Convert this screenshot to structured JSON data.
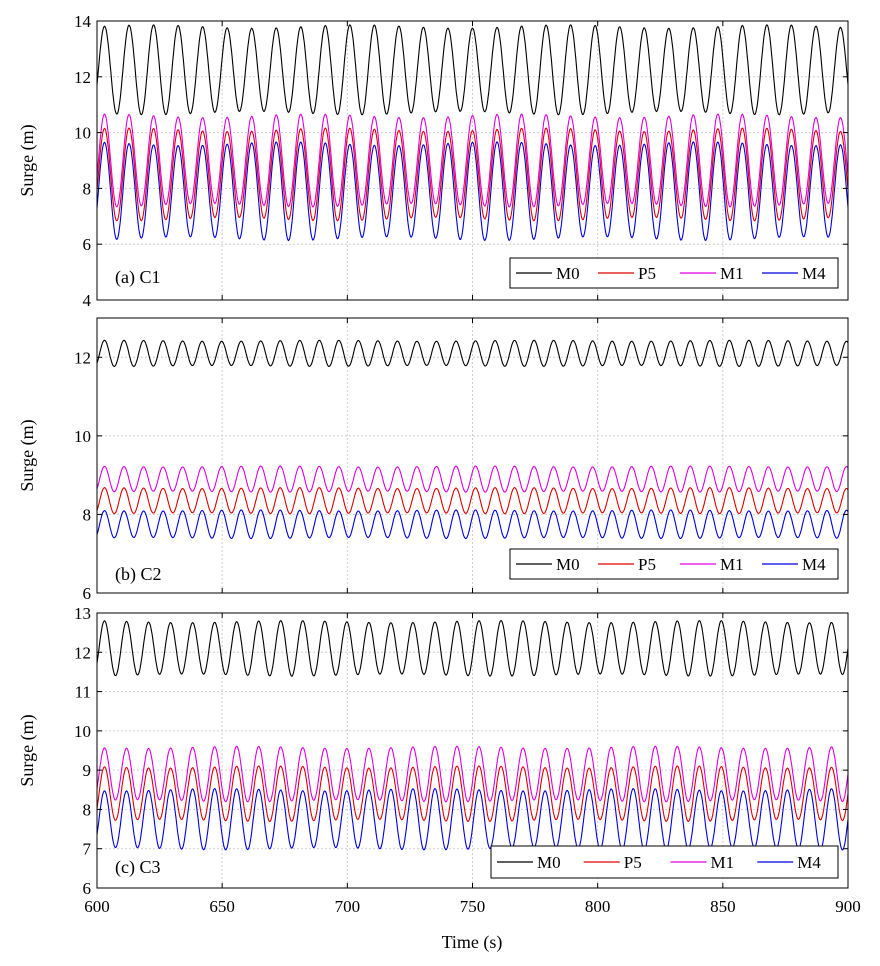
{
  "figure": {
    "xlabel": "Time (s)",
    "x_ticks": [
      "600",
      "650",
      "700",
      "750",
      "800",
      "850",
      "900"
    ]
  },
  "chart_data": [
    {
      "type": "line",
      "tag": "(a) C1",
      "ylabel": "Surge (m)",
      "xlim": [
        600,
        900
      ],
      "ylim": [
        4,
        14
      ],
      "y_ticks": [
        "4",
        "6",
        "8",
        "10",
        "12",
        "14"
      ],
      "x_ticks": [
        "600",
        "650",
        "700",
        "750",
        "800",
        "850",
        "900"
      ],
      "period_s": 9.8,
      "grid": true,
      "legend_position": "bottom-right",
      "series": [
        {
          "name": "M0",
          "color": "#000000",
          "mean": 12.25,
          "amplitude": 1.55
        },
        {
          "name": "P5",
          "color": "#e00000",
          "mean": 8.5,
          "amplitude": 1.6
        },
        {
          "name": "M1",
          "color": "#e000e0",
          "mean": 9.0,
          "amplitude": 1.6
        },
        {
          "name": "M4",
          "color": "#0000e0",
          "mean": 7.9,
          "amplitude": 1.7
        }
      ]
    },
    {
      "type": "line",
      "tag": "(b) C2",
      "ylabel": "Surge (m)",
      "xlim": [
        600,
        900
      ],
      "ylim": [
        6,
        13
      ],
      "y_ticks": [
        "6",
        "8",
        "10",
        "12"
      ],
      "x_ticks": [
        "600",
        "650",
        "700",
        "750",
        "800",
        "850",
        "900"
      ],
      "period_s": 7.8,
      "grid": true,
      "legend_position": "bottom-right",
      "series": [
        {
          "name": "M0",
          "color": "#000000",
          "mean": 12.1,
          "amplitude": 0.32
        },
        {
          "name": "P5",
          "color": "#e00000",
          "mean": 8.35,
          "amplitude": 0.32
        },
        {
          "name": "M1",
          "color": "#e000e0",
          "mean": 8.9,
          "amplitude": 0.32
        },
        {
          "name": "M4",
          "color": "#0000e0",
          "mean": 7.75,
          "amplitude": 0.35
        }
      ]
    },
    {
      "type": "line",
      "tag": "(c) C3",
      "ylabel": "Surge (m)",
      "xlim": [
        600,
        900
      ],
      "ylim": [
        6,
        13
      ],
      "y_ticks": [
        "6",
        "7",
        "8",
        "9",
        "10",
        "11",
        "12",
        "13"
      ],
      "x_ticks": [
        "600",
        "650",
        "700",
        "750",
        "800",
        "850",
        "900"
      ],
      "period_s": 8.8,
      "grid": true,
      "legend_position": "bottom-right",
      "series": [
        {
          "name": "M0",
          "color": "#000000",
          "mean": 12.1,
          "amplitude": 0.68
        },
        {
          "name": "P5",
          "color": "#e00000",
          "mean": 8.4,
          "amplitude": 0.68
        },
        {
          "name": "M1",
          "color": "#e000e0",
          "mean": 8.9,
          "amplitude": 0.68
        },
        {
          "name": "M4",
          "color": "#0000e0",
          "mean": 7.75,
          "amplitude": 0.75
        }
      ]
    }
  ]
}
